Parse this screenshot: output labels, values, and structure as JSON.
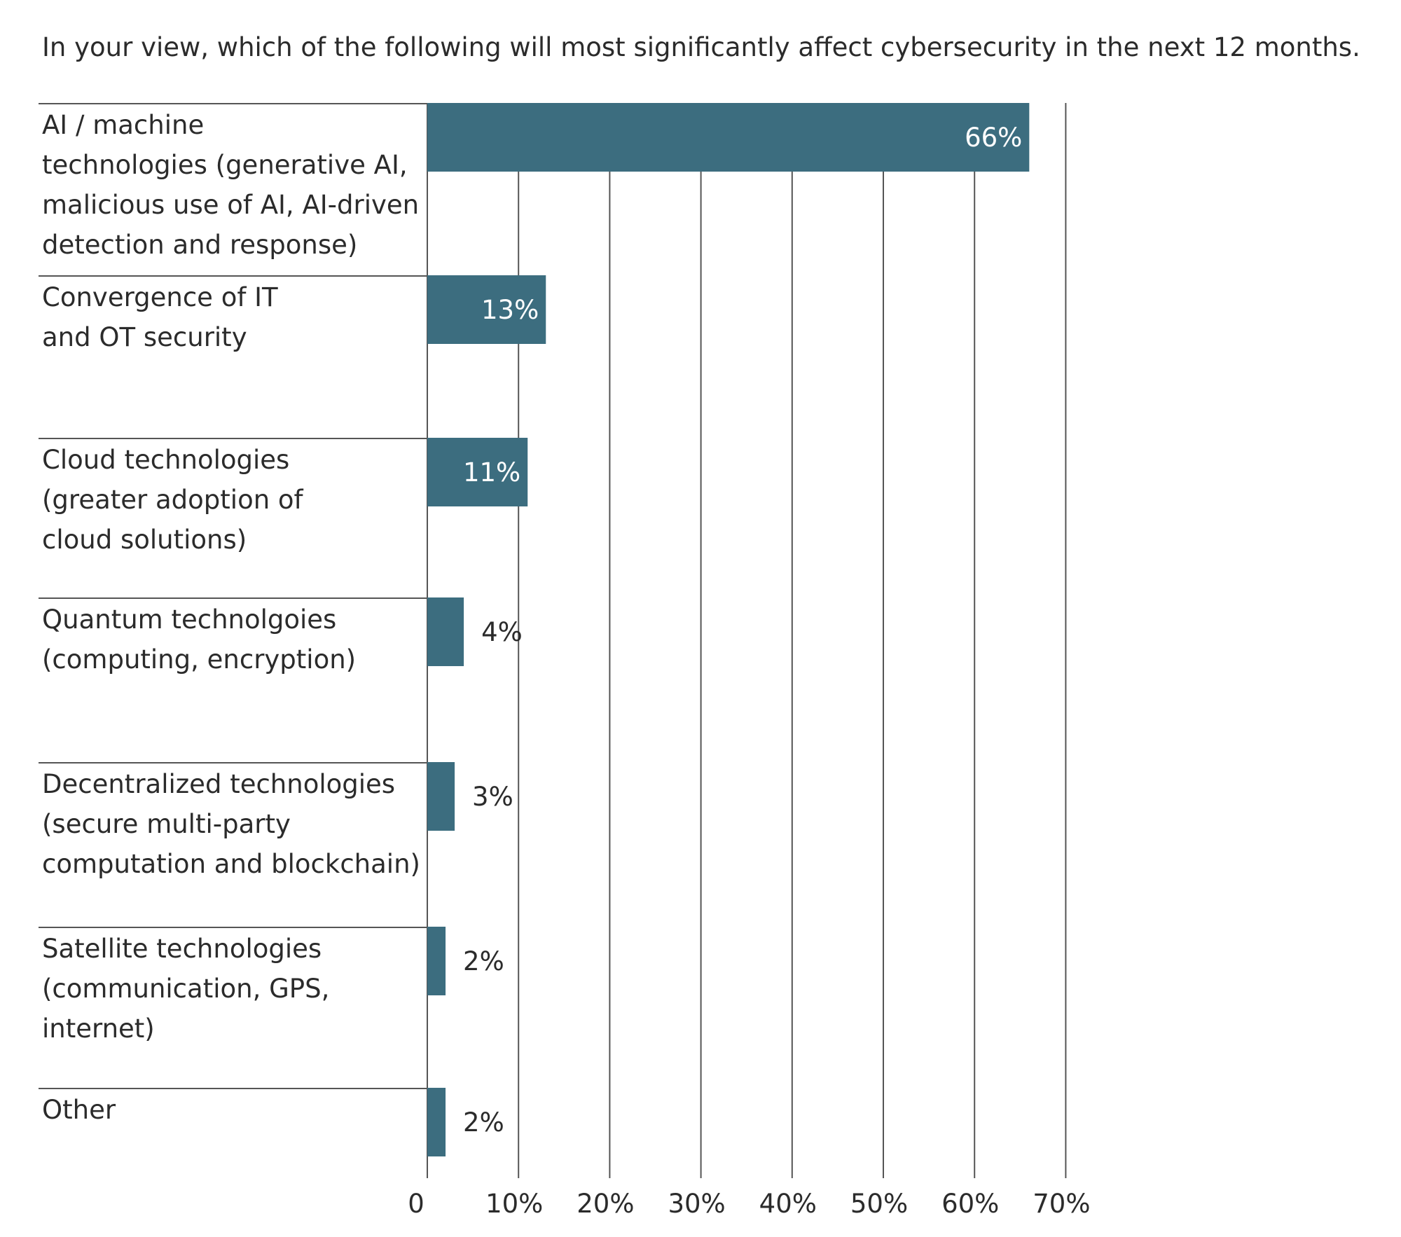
{
  "chart_data": {
    "type": "bar",
    "orientation": "horizontal",
    "title": "In your view, which of the following will most significantly affect cybersecurity in the next 12 months.",
    "categories": [
      [
        "AI / machine",
        "technologies (generative AI,",
        "malicious use of AI, AI-driven",
        "detection and response)"
      ],
      [
        "Convergence of IT",
        "and OT security"
      ],
      [
        "Cloud technologies",
        "(greater adoption of",
        "cloud solutions)"
      ],
      [
        "Quantum technolgoies",
        "(computing, encryption)"
      ],
      [
        "Decentralized technologies",
        "(secure multi-party",
        "computation and blockchain)"
      ],
      [
        "Satellite technologies",
        "(communication, GPS,",
        "internet)"
      ],
      [
        "Other"
      ]
    ],
    "values": [
      66,
      13,
      11,
      4,
      3,
      2,
      2
    ],
    "data_labels": [
      "66%",
      "13%",
      "11%",
      "4%",
      "3%",
      "2%",
      "2%"
    ],
    "xlim": [
      0,
      70
    ],
    "x_ticks": [
      0,
      10,
      20,
      30,
      40,
      50,
      60,
      70
    ],
    "x_tick_labels": [
      "0",
      "10%",
      "20%",
      "30%",
      "40%",
      "50%",
      "60%",
      "70%"
    ],
    "xlabel": "",
    "ylabel": "",
    "grid": true,
    "legend": "none",
    "colors": {
      "bar": "#3c6d7f",
      "label_inside": "#ffffff",
      "label_outside": "#2b2b2b",
      "grid": "#555555",
      "separator": "#555555"
    }
  }
}
